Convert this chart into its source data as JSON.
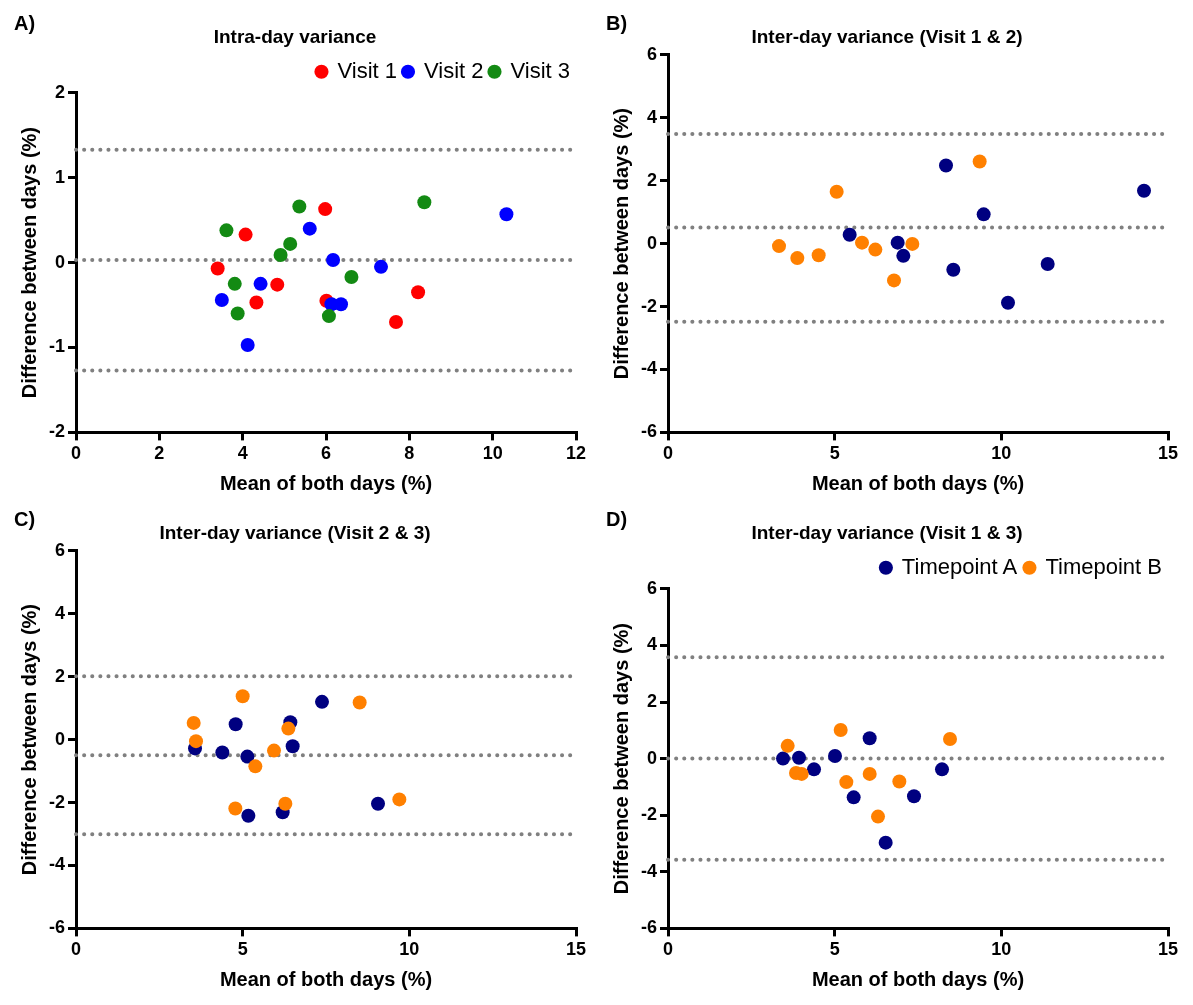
{
  "chart_data": [
    {
      "type": "scatter",
      "title": "Intra-day variance",
      "xlabel": "Mean of both days (%)",
      "ylabel": "Difference between days (%)",
      "annotations": [
        "A)"
      ],
      "xlim": [
        0,
        12
      ],
      "xticks": [
        0,
        2,
        4,
        6,
        8,
        10,
        12
      ],
      "ylim": [
        -2,
        2
      ],
      "yticks": [
        -2,
        -1,
        0,
        1,
        2
      ],
      "grid": false,
      "legend": "top right",
      "marker": "circle",
      "ref_lines": [
        {
          "axis": "y",
          "value": 1.33,
          "color": "#808080",
          "line_style": "dotted"
        },
        {
          "axis": "y",
          "value": 0.03,
          "color": "#808080",
          "line_style": "dotted"
        },
        {
          "axis": "y",
          "value": -1.27,
          "color": "#808080",
          "line_style": "dotted"
        }
      ],
      "series": [
        {
          "name": "Visit 1",
          "color": "#ff0000",
          "x": [
            3.4,
            4.07,
            4.83,
            4.33,
            5.98,
            6.01,
            7.68,
            8.21
          ],
          "values": [
            -0.07,
            0.33,
            -0.26,
            -0.47,
            0.63,
            -0.45,
            -0.7,
            -0.35
          ]
        },
        {
          "name": "Visit 2",
          "color": "#0000ff",
          "x": [
            3.5,
            4.12,
            4.43,
            5.61,
            6.17,
            6.13,
            6.36,
            7.32,
            10.33
          ],
          "values": [
            -0.44,
            -0.97,
            -0.25,
            0.4,
            0.03,
            -0.49,
            -0.49,
            -0.05,
            0.57
          ]
        },
        {
          "name": "Visit 3",
          "color": "#138a13",
          "x": [
            3.61,
            3.81,
            3.88,
            4.91,
            5.14,
            5.36,
            6.07,
            6.61,
            8.36
          ],
          "values": [
            0.38,
            -0.25,
            -0.6,
            0.09,
            0.22,
            0.66,
            -0.63,
            -0.17,
            0.71
          ]
        }
      ]
    },
    {
      "type": "scatter",
      "title": "Inter-day variance (Visit 1 & 2)",
      "xlabel": "Mean of both days (%)",
      "ylabel": "Difference between days (%)",
      "annotations": [
        "B)"
      ],
      "xlim": [
        0,
        15
      ],
      "xticks": [
        0,
        5,
        10,
        15
      ],
      "ylim": [
        -6,
        6
      ],
      "yticks": [
        -6,
        -4,
        -2,
        0,
        2,
        4,
        6
      ],
      "grid": false,
      "marker": "circle",
      "ref_lines": [
        {
          "axis": "y",
          "value": 3.48,
          "color": "#808080",
          "line_style": "dotted"
        },
        {
          "axis": "y",
          "value": 0.51,
          "color": "#808080",
          "line_style": "dotted"
        },
        {
          "axis": "y",
          "value": -2.48,
          "color": "#808080",
          "line_style": "dotted"
        }
      ],
      "series": [
        {
          "color": "#000080",
          "x": [
            5.45,
            6.89,
            7.06,
            8.34,
            8.56,
            9.47,
            10.2,
            11.39,
            14.28
          ],
          "values": [
            0.28,
            0.03,
            -0.39,
            2.48,
            -0.83,
            0.93,
            -1.88,
            -0.65,
            1.68
          ]
        },
        {
          "color": "#ff8000",
          "x": [
            3.33,
            3.88,
            4.52,
            5.06,
            5.82,
            6.22,
            6.78,
            7.33,
            9.35
          ],
          "values": [
            -0.08,
            -0.46,
            -0.37,
            1.65,
            0.03,
            -0.19,
            -1.17,
            -0.01,
            2.61
          ]
        }
      ]
    },
    {
      "type": "scatter",
      "title": "Inter-day variance (Visit 2 & 3)",
      "xlabel": "Mean of both days (%)",
      "ylabel": "Difference between days (%)",
      "annotations": [
        "C)"
      ],
      "xlim": [
        0,
        15
      ],
      "xticks": [
        0,
        5,
        10,
        15
      ],
      "ylim": [
        -6,
        6
      ],
      "yticks": [
        -6,
        -4,
        -2,
        0,
        2,
        4,
        6
      ],
      "grid": false,
      "marker": "circle",
      "ref_lines": [
        {
          "axis": "y",
          "value": 2.01,
          "color": "#808080",
          "line_style": "dotted"
        },
        {
          "axis": "y",
          "value": -0.5,
          "color": "#808080",
          "line_style": "dotted"
        },
        {
          "axis": "y",
          "value": -3.01,
          "color": "#808080",
          "line_style": "dotted"
        }
      ],
      "series": [
        {
          "color": "#000080",
          "x": [
            3.57,
            4.39,
            4.79,
            5.14,
            5.17,
            6.2,
            6.43,
            6.5,
            7.38,
            9.06
          ],
          "values": [
            -0.28,
            -0.41,
            0.49,
            -0.54,
            -2.42,
            -2.31,
            0.55,
            -0.21,
            1.2,
            -2.04
          ]
        },
        {
          "color": "#ff8000",
          "x": [
            3.53,
            3.6,
            5.0,
            4.78,
            5.38,
            5.94,
            6.28,
            6.37,
            8.51,
            9.7
          ],
          "values": [
            0.53,
            -0.05,
            1.38,
            -2.19,
            -0.85,
            -0.35,
            -2.04,
            0.35,
            1.18,
            -1.9
          ]
        }
      ]
    },
    {
      "type": "scatter",
      "title": "Inter-day variance (Visit 1 & 3)",
      "xlabel": "Mean of both days (%)",
      "ylabel": "Difference between days (%)",
      "annotations": [
        "D)"
      ],
      "xlim": [
        0,
        15
      ],
      "xticks": [
        0,
        5,
        10,
        15
      ],
      "ylim": [
        -6,
        6
      ],
      "yticks": [
        -6,
        -4,
        -2,
        0,
        2,
        4,
        6
      ],
      "grid": false,
      "legend": "top right",
      "marker": "circle",
      "ref_lines": [
        {
          "axis": "y",
          "value": 3.58,
          "color": "#808080",
          "line_style": "dotted"
        },
        {
          "axis": "y",
          "value": 0,
          "color": "#808080",
          "line_style": "dotted"
        },
        {
          "axis": "y",
          "value": -3.57,
          "color": "#808080",
          "line_style": "dotted"
        }
      ],
      "series": [
        {
          "name": "Timepoint A",
          "color": "#000080",
          "x": [
            3.45,
            3.93,
            4.38,
            5.01,
            5.57,
            6.05,
            6.53,
            7.38,
            8.22
          ],
          "values": [
            0.0,
            0.03,
            -0.38,
            0.09,
            -1.37,
            0.72,
            -2.97,
            -1.33,
            -0.38
          ]
        },
        {
          "name": "Timepoint B",
          "color": "#ff8000",
          "x": [
            3.59,
            3.84,
            4.01,
            5.18,
            5.35,
            6.05,
            6.3,
            6.94,
            8.46
          ],
          "values": [
            0.45,
            -0.51,
            -0.54,
            1.01,
            -0.83,
            -0.54,
            -2.05,
            -0.81,
            0.69
          ]
        }
      ]
    }
  ]
}
